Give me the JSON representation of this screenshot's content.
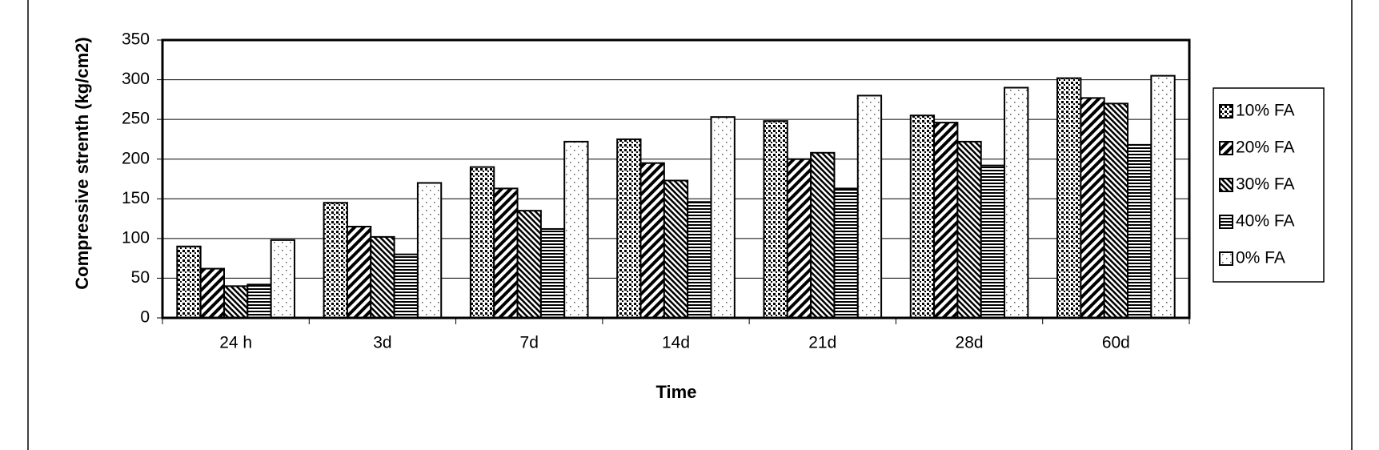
{
  "chart_data": {
    "type": "bar",
    "x_label": "Time",
    "y_label": "Compressive strenth (kg/cm2)",
    "categories": [
      "24 h",
      "3d",
      "7d",
      "14d",
      "21d",
      "28d",
      "60d"
    ],
    "series": [
      {
        "name": "10% FA",
        "color": "#000000",
        "pattern": "dots",
        "values": [
          90,
          145,
          190,
          225,
          248,
          255,
          302
        ]
      },
      {
        "name": "20% FA",
        "color": "#000000",
        "pattern": "wide-diagonal",
        "values": [
          62,
          115,
          163,
          195,
          200,
          246,
          277
        ]
      },
      {
        "name": "30% FA",
        "color": "#000000",
        "pattern": "narrow-diagonal",
        "values": [
          40,
          102,
          135,
          173,
          208,
          222,
          270
        ]
      },
      {
        "name": "40% FA",
        "color": "#000000",
        "pattern": "horizontal",
        "values": [
          42,
          80,
          112,
          146,
          163,
          192,
          218
        ]
      },
      {
        "name": "0% FA",
        "color": "#000000",
        "pattern": "sparse-dots",
        "values": [
          98,
          170,
          222,
          253,
          280,
          290,
          305
        ]
      }
    ],
    "ylim": [
      0,
      350
    ],
    "yticks": [
      0,
      50,
      100,
      150,
      200,
      250,
      300,
      350
    ],
    "grid": true,
    "legend": "right"
  }
}
